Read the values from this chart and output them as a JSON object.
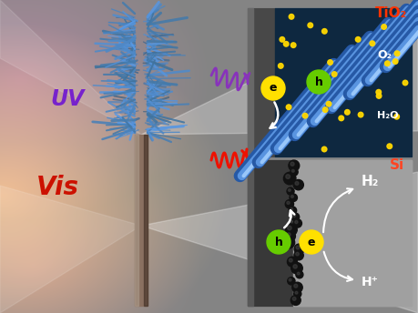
{
  "fig_width": 4.59,
  "fig_height": 3.44,
  "dpi": 100,
  "uv_text": "UV",
  "vis_text": "Vis",
  "tio2_label": "TiO₂",
  "si_label": "Si",
  "o2_label": "O₂",
  "h2o_label": "H₂O",
  "h2_label": "H₂",
  "hplus_label": "H⁺",
  "e_label": "e",
  "h_label": "h",
  "uv_color": "#7722CC",
  "vis_color": "#CC1100",
  "tio2_color": "#FF3300",
  "si_color": "#FF4422",
  "yellow_color": "#FFE000",
  "green_color": "#66CC00",
  "uv_wave_color": "#8833BB",
  "vis_wave_color": "#EE1100"
}
